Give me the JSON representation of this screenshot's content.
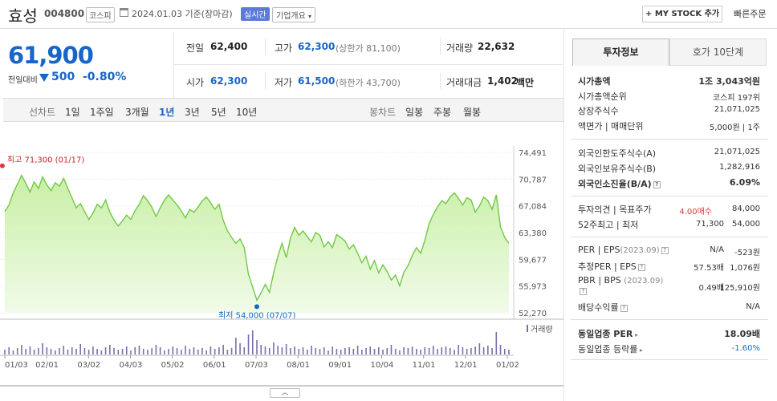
{
  "header": {
    "company": "효성",
    "code": "004800",
    "market": "코스피",
    "as_of": "2024.01.03  기준(장마감)",
    "realtime_label": "실시간",
    "overview_label": "기업개요",
    "mystock_label": "+ MY STOCK 추가",
    "quick_order_label": "빠른주문"
  },
  "price": {
    "current": "61,900",
    "change_label": "전일대비",
    "change": "500",
    "change_pct": "-0.80%",
    "direction": "down"
  },
  "quotes": {
    "prev_close": {
      "label": "전일",
      "value": "62,400"
    },
    "high": {
      "label": "고가",
      "value": "62,300",
      "sub": "(상한가 81,100)"
    },
    "volume": {
      "label": "거래량",
      "value": "22,632"
    },
    "open": {
      "label": "시가",
      "value": "62,300"
    },
    "low": {
      "label": "저가",
      "value": "61,500",
      "sub": "(하한가 43,700)"
    },
    "amount": {
      "label": "거래대금",
      "value": "1,402",
      "unit": "백만"
    }
  },
  "periods": {
    "line_label": "선차트",
    "items": [
      "1일",
      "1주일",
      "3개월",
      "1년",
      "3년",
      "5년",
      "10년"
    ],
    "selected": "1년",
    "candle_label": "봉차트",
    "candle_items": [
      "일봉",
      "주봉",
      "월봉"
    ]
  },
  "right_panel": {
    "tabs": [
      "투자정보",
      "호가 10단계"
    ],
    "rows": [
      {
        "label": "시가총액",
        "value": "1조 3,043억원",
        "bold": true
      },
      {
        "label": "시가총액순위",
        "value": "코스피 197위"
      },
      {
        "label": "상장주식수",
        "value": "21,071,025"
      },
      {
        "label": "액면가 | 매매단위",
        "value": "5,000원 | 1주"
      },
      {
        "label": "외국인한도주식수(A)",
        "value": "21,071,025"
      },
      {
        "label": "외국인보유주식수(B)",
        "value": "1,282,916"
      },
      {
        "label": "외국인소진율(B/A)",
        "value": "6.09%",
        "bold": true
      },
      {
        "label": "투자의견 | 목표주가",
        "value_red": "4.00매수",
        "value": "84,000"
      },
      {
        "label": "52주최고 | 최저",
        "value_a": "71,300",
        "value": "54,000"
      },
      {
        "label": "PER | EPS(2023.09)",
        "value_a": "N/A",
        "value": "-523원"
      },
      {
        "label": "추정PER | EPS",
        "value_a": "57.53배",
        "value": "1,076원"
      },
      {
        "label": "PBR | BPS (2023.09)",
        "value_a": "0.49배",
        "value": "125,910원"
      },
      {
        "label": "배당수익률",
        "value": "N/A"
      },
      {
        "label": "동일업종 PER",
        "value": "18.09배",
        "bold": true
      },
      {
        "label": "동일업종 등락률",
        "value": "-1.60%",
        "blue": true
      }
    ]
  },
  "chart_data": {
    "type": "area",
    "y_ticks": [
      "74,491",
      "70,787",
      "67,084",
      "63,380",
      "59,677",
      "55,973",
      "52,270"
    ],
    "ylim": [
      52270,
      74491
    ],
    "x_ticks": [
      "01/03",
      "02/01",
      "03/02",
      "04/03",
      "05/02",
      "06/01",
      "07/03",
      "08/01",
      "09/01",
      "10/04",
      "11/01",
      "12/01",
      "01/02"
    ],
    "annotations": {
      "high": "최고 71,300 (01/17)",
      "low": "최저 54,000 (07/07)"
    },
    "volume_label": "거래량",
    "colors": {
      "line": "#72c844",
      "fill_top": "#c8efa6",
      "fill_bottom": "#f1fbe8",
      "volume": "#7a6fa8"
    },
    "values": [
      66300,
      67200,
      68900,
      70100,
      71300,
      70200,
      69000,
      70400,
      69500,
      71100,
      70000,
      69200,
      70300,
      69800,
      70900,
      69500,
      68200,
      66800,
      67400,
      66300,
      65200,
      66100,
      67300,
      66800,
      67900,
      66200,
      65100,
      64300,
      65000,
      65800,
      65200,
      66400,
      67300,
      68500,
      67800,
      66900,
      65600,
      66800,
      67900,
      68600,
      67900,
      67200,
      66400,
      65400,
      66600,
      66200,
      66900,
      67800,
      68300,
      67500,
      66600,
      67300,
      65100,
      63600,
      62700,
      61900,
      62500,
      61300,
      57600,
      55800,
      54000,
      55000,
      56200,
      55100,
      57800,
      60100,
      61900,
      59900,
      62600,
      64100,
      63000,
      63600,
      62800,
      62100,
      63400,
      63000,
      61400,
      62100,
      61300,
      63100,
      62700,
      62200,
      61100,
      61700,
      60500,
      59200,
      60100,
      58300,
      59500,
      57800,
      58900,
      58000,
      56800,
      57500,
      56000,
      57900,
      58800,
      60200,
      61300,
      60500,
      62300,
      64600,
      65900,
      66900,
      67800,
      67400,
      68300,
      68900,
      68100,
      67200,
      68200,
      67900,
      66200,
      67100,
      68300,
      67800,
      66600,
      68600,
      64200,
      62700,
      61900
    ],
    "volume": [
      6,
      9,
      5,
      8,
      12,
      7,
      10,
      6,
      8,
      14,
      9,
      7,
      5,
      8,
      11,
      6,
      9,
      7,
      13,
      8,
      6,
      10,
      7,
      5,
      9,
      12,
      8,
      6,
      7,
      10,
      5,
      9,
      11,
      7,
      6,
      8,
      12,
      9,
      5,
      7,
      10,
      8,
      6,
      11,
      7,
      9,
      6,
      8,
      5,
      10,
      7,
      9,
      12,
      6,
      8,
      21,
      14,
      9,
      25,
      30,
      18,
      12,
      10,
      8,
      15,
      11,
      9,
      13,
      8,
      10,
      7,
      9,
      6,
      11,
      8,
      7,
      9,
      5,
      10,
      7,
      6,
      8,
      9,
      7,
      11,
      6,
      8,
      10,
      7,
      9,
      6,
      8,
      12,
      7,
      5,
      9,
      8,
      10,
      7,
      6,
      9,
      8,
      11,
      7,
      9,
      10,
      8,
      6,
      12,
      9,
      7,
      8,
      10,
      14,
      9,
      11,
      8,
      28,
      12,
      7,
      6
    ],
    "grid": true
  }
}
